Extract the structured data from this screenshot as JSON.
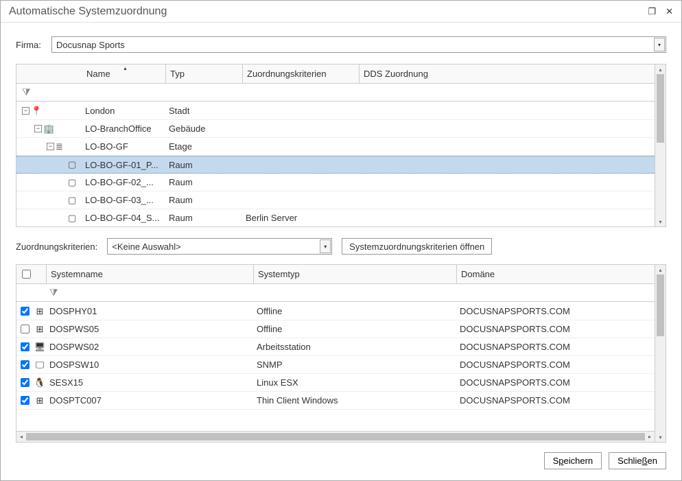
{
  "window": {
    "title": "Automatische Systemzuordnung"
  },
  "firma": {
    "label": "Firma:",
    "value": "Docusnap Sports"
  },
  "tree": {
    "columns": {
      "name": "Name",
      "typ": "Typ",
      "zk": "Zuordnungskriterien",
      "dds": "DDS Zuordnung"
    },
    "rows": [
      {
        "indent": 0,
        "expander": "⊟",
        "icon": "📍",
        "name": "London",
        "typ": "Stadt",
        "zk": "",
        "selected": false
      },
      {
        "indent": 1,
        "expander": "⊟",
        "icon": "🏢",
        "name": "LO-BranchOffice",
        "typ": "Gebäude",
        "zk": "",
        "selected": false
      },
      {
        "indent": 2,
        "expander": "⊟",
        "icon": "≣",
        "name": "LO-BO-GF",
        "typ": "Etage",
        "zk": "",
        "selected": false
      },
      {
        "indent": 3,
        "expander": "",
        "icon": "▢",
        "name": "LO-BO-GF-01_P...",
        "typ": "Raum",
        "zk": "",
        "selected": true
      },
      {
        "indent": 3,
        "expander": "",
        "icon": "▢",
        "name": "LO-BO-GF-02_...",
        "typ": "Raum",
        "zk": "",
        "selected": false
      },
      {
        "indent": 3,
        "expander": "",
        "icon": "▢",
        "name": "LO-BO-GF-03_...",
        "typ": "Raum",
        "zk": "",
        "selected": false
      },
      {
        "indent": 3,
        "expander": "",
        "icon": "▢",
        "name": "LO-BO-GF-04_S...",
        "typ": "Raum",
        "zk": "Berlin Server",
        "selected": false
      }
    ]
  },
  "criteria": {
    "label": "Zuordnungskriterien:",
    "value": "<Keine Auswahl>",
    "open_btn": "Systemzuordnungskriterien öffnen"
  },
  "systems": {
    "columns": {
      "name": "Systemname",
      "typ": "Systemtyp",
      "domain": "Domäne"
    },
    "rows": [
      {
        "checked": true,
        "icon": "⊞",
        "name": "DOSPHY01",
        "typ": "Offline",
        "domain": "DOCUSNAPSPORTS.COM"
      },
      {
        "checked": false,
        "icon": "⊞",
        "name": "DOSPWS05",
        "typ": "Offline",
        "domain": "DOCUSNAPSPORTS.COM"
      },
      {
        "checked": true,
        "icon": "🖥",
        "name": "DOSPWS02",
        "typ": "Arbeitsstation",
        "domain": "DOCUSNAPSPORTS.COM"
      },
      {
        "checked": true,
        "icon": "🖵",
        "name": "DOSPSW10",
        "typ": "SNMP",
        "domain": "DOCUSNAPSPORTS.COM"
      },
      {
        "checked": true,
        "icon": "🐧",
        "name": "SESX15",
        "typ": "Linux ESX",
        "domain": "DOCUSNAPSPORTS.COM"
      },
      {
        "checked": true,
        "icon": "⊞",
        "name": "DOSPTC007",
        "typ": "Thin Client Windows",
        "domain": "DOCUSNAPSPORTS.COM"
      }
    ]
  },
  "buttons": {
    "save": "Speichern",
    "close": "Schließen"
  },
  "colors": {
    "selected_row": "#c4d9ee",
    "border": "#cccccc",
    "header_bg": "#f9f9f9"
  }
}
